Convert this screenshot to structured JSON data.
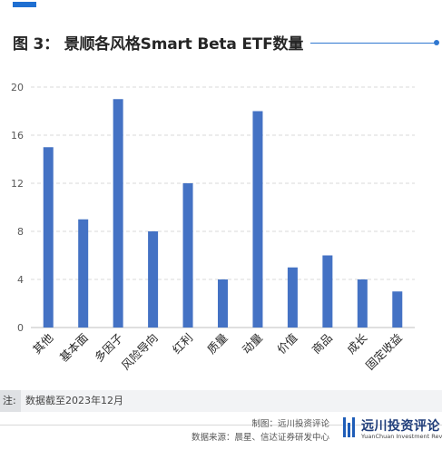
{
  "title": "图 3： 景顺各风格Smart Beta ETF数量",
  "chart_data": {
    "type": "bar",
    "categories": [
      "其他",
      "基本面",
      "多因子",
      "风险导向",
      "红利",
      "质量",
      "动量",
      "价值",
      "商品",
      "成长",
      "固定收益"
    ],
    "values": [
      15,
      9,
      19,
      8,
      12,
      4,
      18,
      5,
      6,
      4,
      3
    ],
    "ylim": [
      0,
      20
    ],
    "yticks": [
      "0",
      "4",
      "8",
      "12",
      "16",
      "20"
    ],
    "grid": true,
    "bar_color": "#4472c4"
  },
  "note": {
    "label": "注:",
    "text": "数据截至2023年12月"
  },
  "credits": {
    "made_by": "制图：远川投资评论",
    "source": "数据来源：晨星、信达证券研发中心"
  },
  "logo": {
    "name": "远川投资评论",
    "subtitle": "YuanChuan Investment Review"
  },
  "colors": {
    "accent": "#1f6fd1",
    "bar": "#4472c4",
    "grid": "#d9d9d9"
  }
}
